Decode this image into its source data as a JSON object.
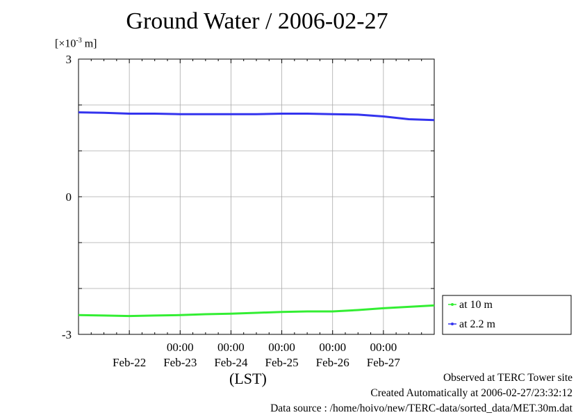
{
  "title": "Ground Water / 2006-02-27",
  "unit": {
    "prefix": "[×10",
    "exponent": "-3",
    "suffix": " m]"
  },
  "x_axis_title": "(LST)",
  "footer": {
    "observed": "Observed at TERC Tower site",
    "created": "Created Automatically at 2006-02-27/23:32:12",
    "source": "Data source : /home/hoivo/new/TERC-data/sorted_data/MET.30m.dat"
  },
  "colors": {
    "at_10m": "#33ee33",
    "at_2_2m": "#3333ee",
    "grid": "#aaaaaa"
  },
  "chart_data": {
    "type": "line",
    "title": "Ground Water / 2006-02-27",
    "ylabel": "[×10-3 m]",
    "xlabel": "(LST)",
    "ylim": [
      -3,
      3
    ],
    "yticks": [
      "3",
      "0",
      "-3"
    ],
    "xlim": [
      "2006-02-21 00:00",
      "2006-02-28 00:00"
    ],
    "x_tick_top": [
      "00:00",
      "00:00",
      "00:00",
      "00:00",
      "00:00"
    ],
    "x_tick_bottom": [
      "Feb-22",
      "Feb-23",
      "Feb-24",
      "Feb-25",
      "Feb-26",
      "Feb-27"
    ],
    "grid": true,
    "legend_position": "bottom-right, outside plot",
    "series": [
      {
        "name": "at 10 m",
        "color": "#33ee33",
        "points": [
          [
            "2006-02-21 00:00",
            -2.58
          ],
          [
            "2006-02-21 12:00",
            -2.59
          ],
          [
            "2006-02-22 00:00",
            -2.6
          ],
          [
            "2006-02-22 12:00",
            -2.59
          ],
          [
            "2006-02-23 00:00",
            -2.58
          ],
          [
            "2006-02-23 12:00",
            -2.56
          ],
          [
            "2006-02-24 00:00",
            -2.55
          ],
          [
            "2006-02-24 12:00",
            -2.53
          ],
          [
            "2006-02-25 00:00",
            -2.51
          ],
          [
            "2006-02-25 12:00",
            -2.5
          ],
          [
            "2006-02-26 00:00",
            -2.5
          ],
          [
            "2006-02-26 12:00",
            -2.47
          ],
          [
            "2006-02-27 00:00",
            -2.43
          ],
          [
            "2006-02-27 12:00",
            -2.4
          ],
          [
            "2006-02-28 00:00",
            -2.37
          ]
        ]
      },
      {
        "name": "at 2.2 m",
        "color": "#3333ee",
        "points": [
          [
            "2006-02-21 00:00",
            1.84
          ],
          [
            "2006-02-21 12:00",
            1.83
          ],
          [
            "2006-02-22 00:00",
            1.81
          ],
          [
            "2006-02-22 12:00",
            1.81
          ],
          [
            "2006-02-23 00:00",
            1.8
          ],
          [
            "2006-02-23 12:00",
            1.8
          ],
          [
            "2006-02-24 00:00",
            1.8
          ],
          [
            "2006-02-24 12:00",
            1.8
          ],
          [
            "2006-02-25 00:00",
            1.81
          ],
          [
            "2006-02-25 12:00",
            1.81
          ],
          [
            "2006-02-26 00:00",
            1.8
          ],
          [
            "2006-02-26 12:00",
            1.79
          ],
          [
            "2006-02-27 00:00",
            1.75
          ],
          [
            "2006-02-27 12:00",
            1.69
          ],
          [
            "2006-02-28 00:00",
            1.67
          ]
        ]
      }
    ]
  }
}
